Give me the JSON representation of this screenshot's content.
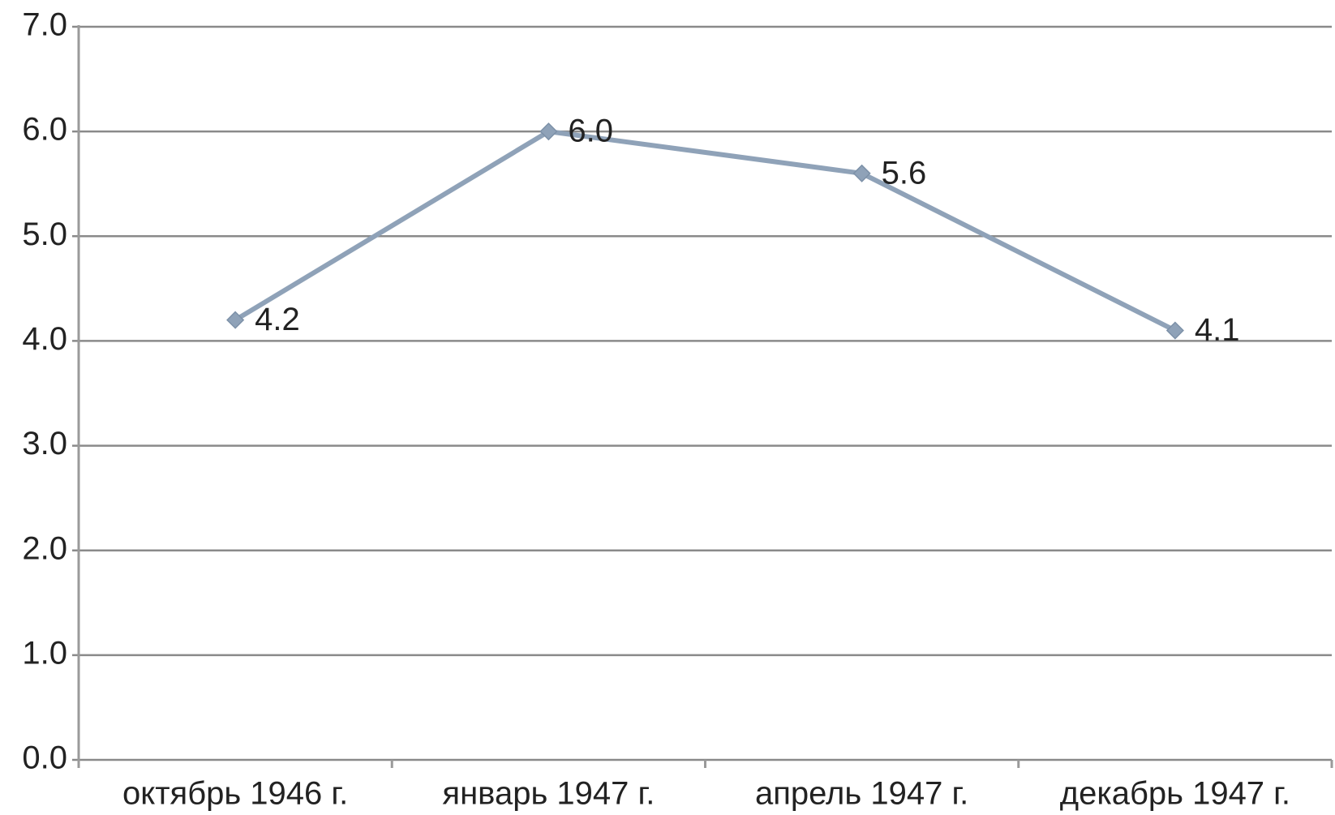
{
  "chart_data": {
    "type": "line",
    "categories": [
      "октябрь 1946 г.",
      "январь 1947 г.",
      "апрель 1947 г.",
      "декабрь 1947 г."
    ],
    "series": [
      {
        "color": "#8fa2b8",
        "values": [
          4.2,
          6.0,
          5.6,
          4.1
        ],
        "value_labels": [
          "4.2",
          "6.0",
          "5.6",
          "4.1"
        ]
      }
    ],
    "ylim": [
      0,
      7
    ],
    "yticks": [
      {
        "value": 0,
        "label": "0.0"
      },
      {
        "value": 1,
        "label": "1.0"
      },
      {
        "value": 2,
        "label": "2.0"
      },
      {
        "value": 3,
        "label": "3.0"
      },
      {
        "value": 4,
        "label": "4.0"
      },
      {
        "value": 5,
        "label": "5.0"
      },
      {
        "value": 6,
        "label": "6.0"
      },
      {
        "value": 7,
        "label": "7.0"
      }
    ],
    "grid": true
  }
}
